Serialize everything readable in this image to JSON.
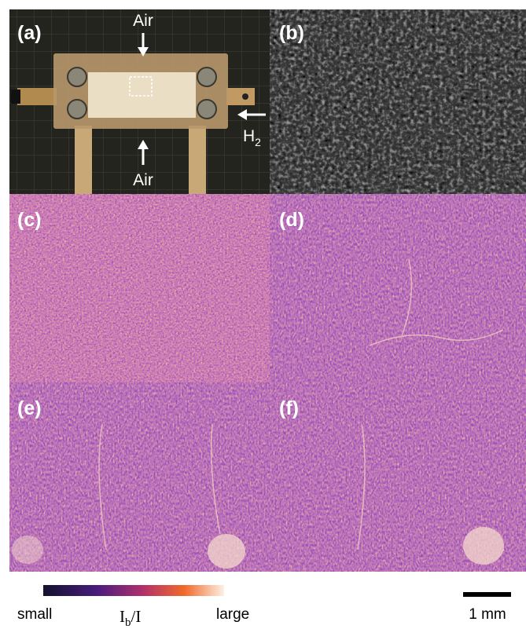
{
  "panels": [
    {
      "label": "(a)"
    },
    {
      "label": "(b)"
    },
    {
      "label": "(c)"
    },
    {
      "label": "(d)"
    },
    {
      "label": "(e)"
    },
    {
      "label": "(f)"
    }
  ],
  "annotations": {
    "air_top": "Air",
    "air_bottom": "Air",
    "h2": {
      "main": "H",
      "sub": "2"
    }
  },
  "colorbar": {
    "min_label": "small",
    "max_label": "large",
    "title": {
      "main": "I",
      "sub": "b",
      "rest": "/I"
    }
  },
  "scale_bar": {
    "label": "1 mm"
  }
}
